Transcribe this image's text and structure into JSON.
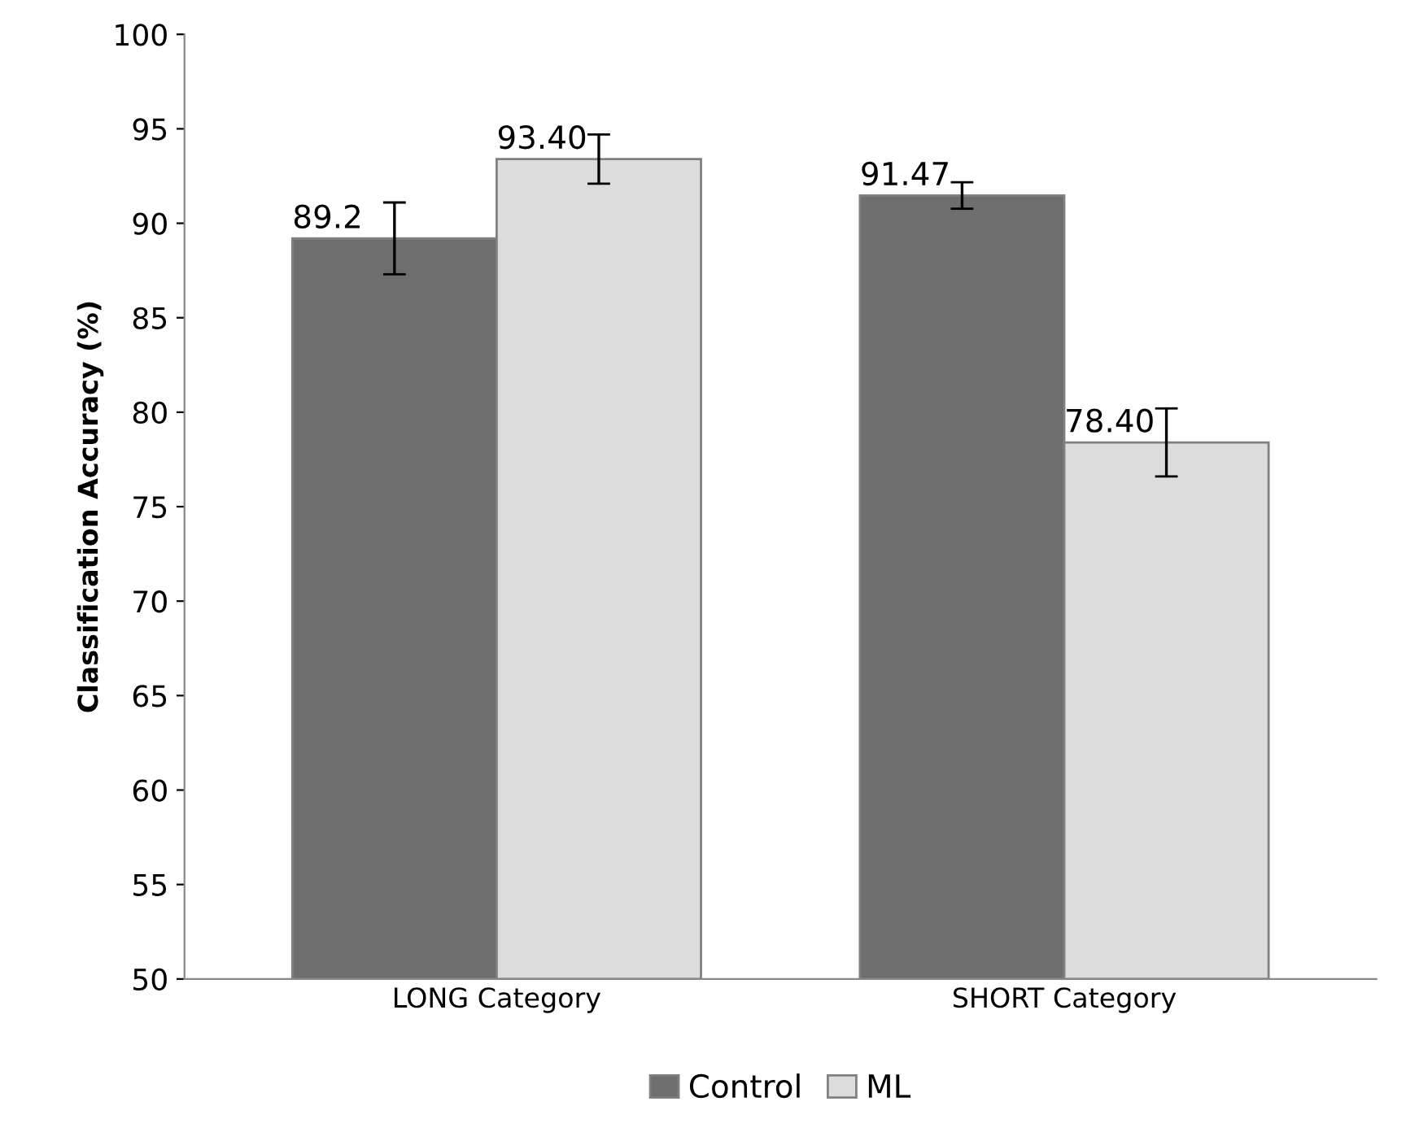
{
  "chart_data": {
    "type": "bar",
    "ylabel": "Classification Accuracy (%)",
    "categories": [
      "LONG Category",
      "SHORT Category"
    ],
    "series": [
      {
        "name": "Control",
        "color": "#6e6e6e",
        "values": [
          89.2,
          91.47
        ],
        "errors": [
          1.9,
          0.7
        ],
        "value_labels": [
          "89.2",
          "91.47"
        ]
      },
      {
        "name": "ML",
        "color": "#dcdcdc",
        "values": [
          93.4,
          78.4
        ],
        "errors": [
          1.3,
          1.8
        ],
        "value_labels": [
          "93.40",
          "78.40"
        ]
      }
    ],
    "ylim": [
      50,
      100
    ],
    "yticks": [
      50,
      55,
      60,
      65,
      70,
      75,
      80,
      85,
      90,
      95,
      100
    ],
    "grid": false,
    "legend": "bottom"
  }
}
